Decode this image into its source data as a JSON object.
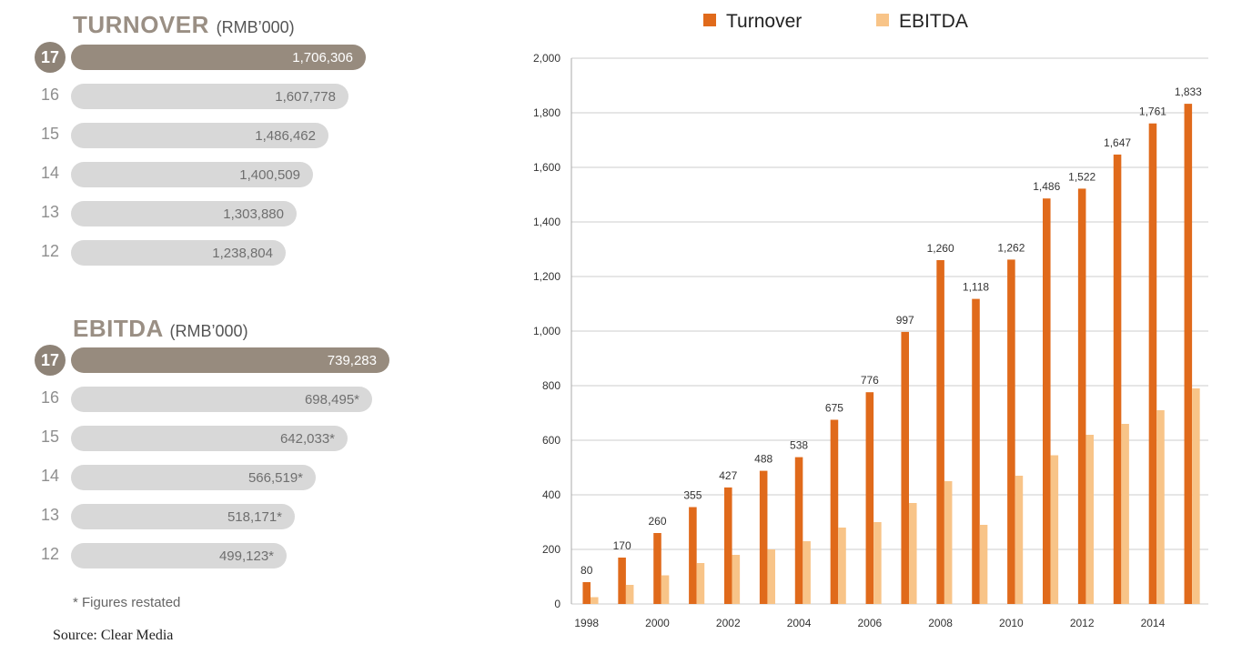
{
  "turnover_panel": {
    "title": "TURNOVER",
    "unit": "(RMB’000)",
    "rows": [
      {
        "year": "17",
        "value": "1,706,306",
        "amount": 1706306
      },
      {
        "year": "16",
        "value": "1,607,778",
        "amount": 1607778
      },
      {
        "year": "15",
        "value": "1,486,462",
        "amount": 1486462
      },
      {
        "year": "14",
        "value": "1,400,509",
        "amount": 1400509
      },
      {
        "year": "13",
        "value": "1,303,880",
        "amount": 1303880
      },
      {
        "year": "12",
        "value": "1,238,804",
        "amount": 1238804
      }
    ]
  },
  "ebitda_panel": {
    "title": "EBITDA",
    "unit": "(RMB’000)",
    "rows": [
      {
        "year": "17",
        "value": "739,283",
        "amount": 739283
      },
      {
        "year": "16",
        "value": "698,495*",
        "amount": 698495
      },
      {
        "year": "15",
        "value": "642,033*",
        "amount": 642033
      },
      {
        "year": "14",
        "value": "566,519*",
        "amount": 566519
      },
      {
        "year": "13",
        "value": "518,171*",
        "amount": 518171
      },
      {
        "year": "12",
        "value": "499,123*",
        "amount": 499123
      }
    ]
  },
  "footnote": "* Figures restated",
  "source": "Source: Clear Media",
  "colors": {
    "turnover": "#e06a1b",
    "ebitda": "#f8c488",
    "grid": "#cccccc",
    "badge": "#8e8377",
    "bar_primary": "#978b7e",
    "bar_secondary": "#d8d8d8"
  },
  "chart_data": {
    "type": "bar",
    "title": "",
    "xlabel": "",
    "ylabel": "",
    "ylim": [
      0,
      2000
    ],
    "yticks": [
      "0",
      "200",
      "400",
      "600",
      "800",
      "1,000",
      "1,200",
      "1,400",
      "1,600",
      "1,800",
      "2,000"
    ],
    "categories": [
      "1998",
      "1999",
      "2000",
      "2001",
      "2002",
      "2003",
      "2004",
      "2005",
      "2006",
      "2007",
      "2008",
      "2009",
      "2010",
      "2011",
      "2012",
      "2013",
      "2014",
      "2015"
    ],
    "xtick_labels": [
      "1998",
      "2000",
      "2002",
      "2004",
      "2006",
      "2008",
      "2010",
      "2012",
      "2014"
    ],
    "legend": [
      "Turnover",
      "EBITDA"
    ],
    "legend_position": "top",
    "series": [
      {
        "name": "Turnover",
        "values": [
          80,
          170,
          260,
          355,
          427,
          488,
          538,
          675,
          776,
          997,
          1260,
          1118,
          1262,
          1486,
          1522,
          1647,
          1761,
          1833
        ],
        "labels": [
          "80",
          "170",
          "260",
          "355",
          "427",
          "488",
          "538",
          "675",
          "776",
          "997",
          "1,260",
          "1,118",
          "1,262",
          "1,486",
          "1,522",
          "1,647",
          "1,761",
          "1,833"
        ]
      },
      {
        "name": "EBITDA",
        "values": [
          25,
          70,
          105,
          150,
          180,
          200,
          230,
          280,
          300,
          370,
          450,
          290,
          470,
          545,
          620,
          660,
          710,
          790
        ]
      }
    ]
  }
}
